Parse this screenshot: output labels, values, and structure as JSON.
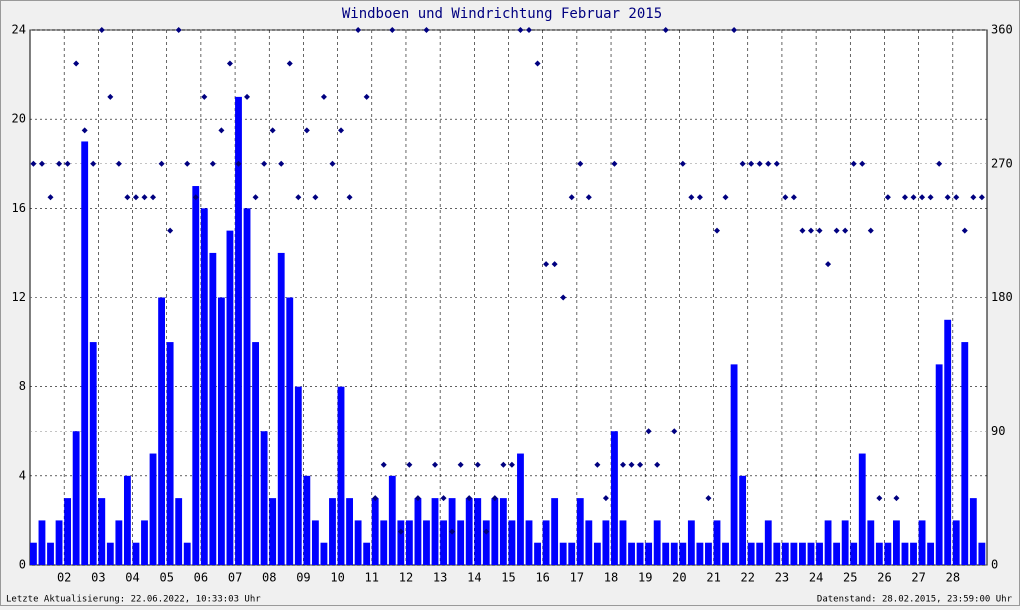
{
  "chart_data": {
    "type": "bar_scatter",
    "title": "Windboen und Windrichtung Februar 2015",
    "footer_left": "Letzte Aktualisierung: 22.06.2022, 10:33:03 Uhr",
    "footer_right": "Datenstand: 28.02.2015, 23:59:00 Uhr",
    "xlim": [
      1,
      29
    ],
    "xticks": [
      {
        "value": 2,
        "label": "02"
      },
      {
        "value": 3,
        "label": "03"
      },
      {
        "value": 4,
        "label": "04"
      },
      {
        "value": 5,
        "label": "05"
      },
      {
        "value": 6,
        "label": "06"
      },
      {
        "value": 7,
        "label": "07"
      },
      {
        "value": 8,
        "label": "08"
      },
      {
        "value": 9,
        "label": "09"
      },
      10,
      11,
      12,
      13,
      14,
      15,
      16,
      17,
      18,
      19,
      20,
      21,
      22,
      23,
      24,
      25,
      26,
      27,
      28
    ],
    "ylim": [
      0,
      24
    ],
    "yticks": [
      0,
      4,
      8,
      12,
      16,
      20,
      24
    ],
    "y2lim": [
      0,
      360
    ],
    "y2ticks": [
      0,
      90,
      180,
      270,
      360
    ],
    "grid": true,
    "x": [
      1,
      1.25,
      1.5,
      1.75,
      2,
      2.25,
      2.5,
      2.75,
      3,
      3.25,
      3.5,
      3.75,
      4,
      4.25,
      4.5,
      4.75,
      5,
      5.25,
      5.5,
      5.75,
      6,
      6.25,
      6.5,
      6.75,
      7,
      7.25,
      7.5,
      7.75,
      8,
      8.25,
      8.5,
      8.75,
      9,
      9.25,
      9.5,
      9.75,
      10,
      10.25,
      10.5,
      10.75,
      11,
      11.25,
      11.5,
      11.75,
      12,
      12.25,
      12.5,
      12.75,
      13,
      13.25,
      13.5,
      13.75,
      14,
      14.25,
      14.5,
      14.75,
      15,
      15.25,
      15.5,
      15.75,
      16,
      16.25,
      16.5,
      16.75,
      17,
      17.25,
      17.5,
      17.75,
      18,
      18.25,
      18.5,
      18.75,
      19,
      19.25,
      19.5,
      19.75,
      20,
      20.25,
      20.5,
      20.75,
      21,
      21.25,
      21.5,
      21.75,
      22,
      22.25,
      22.5,
      22.75,
      23,
      23.25,
      23.5,
      23.75,
      24,
      24.25,
      24.5,
      24.75,
      25,
      25.25,
      25.5,
      25.75,
      26,
      26.25,
      26.5,
      26.75,
      27,
      27.25,
      27.5,
      27.75,
      28,
      28.25,
      28.5,
      28.75
    ],
    "series": [
      {
        "color": "#0000ff",
        "values": [
          1,
          2,
          1,
          2,
          3,
          6,
          19,
          10,
          3,
          1,
          2,
          4,
          1,
          2,
          5,
          12,
          10,
          3,
          1,
          17,
          16,
          14,
          12,
          15,
          21,
          16,
          10,
          6,
          3,
          14,
          12,
          8,
          4,
          2,
          1,
          3,
          8,
          3,
          2,
          1,
          3,
          2,
          4,
          2,
          2,
          3,
          2,
          3,
          2,
          3,
          2,
          3,
          3,
          2,
          3,
          3,
          2,
          5,
          2,
          1,
          2,
          3,
          1,
          1,
          3,
          2,
          1,
          2,
          6,
          2,
          1,
          1,
          1,
          2,
          1,
          1,
          1,
          2,
          1,
          1,
          2,
          1,
          9,
          4,
          1,
          1,
          2,
          1,
          1,
          1,
          1,
          1,
          1,
          2,
          1,
          2,
          1,
          5,
          2,
          1,
          1,
          2,
          1,
          1,
          2,
          1,
          9,
          11,
          2,
          10,
          3,
          1
        ]
      },
      {
        "color": "#000080",
        "axis": "y2",
        "values": [
          270,
          270,
          247.5,
          270,
          270,
          337.5,
          292.5,
          270,
          360,
          315,
          270,
          247.5,
          247.5,
          247.5,
          247.5,
          270,
          225,
          360,
          270,
          247.5,
          315,
          270,
          292.5,
          337.5,
          270,
          315,
          247.5,
          270,
          292.5,
          270,
          337.5,
          247.5,
          292.5,
          247.5,
          315,
          270,
          292.5,
          247.5,
          360,
          315,
          45,
          67.5,
          360,
          22.5,
          67.5,
          45,
          360,
          67.5,
          45,
          22.5,
          67.5,
          45,
          67.5,
          22.5,
          45,
          67.5,
          67.5,
          360,
          360,
          337.5,
          202.5,
          202.5,
          180,
          247.5,
          270,
          247.5,
          67.5,
          45,
          270,
          67.5,
          67.5,
          67.5,
          90,
          67.5,
          360,
          90,
          270,
          247.5,
          247.5,
          45,
          225,
          247.5,
          360,
          270,
          270,
          270,
          270,
          270,
          247.5,
          247.5,
          225,
          225,
          225,
          202.5,
          225,
          225,
          270,
          270,
          225,
          45,
          247.5,
          45,
          247.5,
          247.5,
          247.5,
          247.5,
          270,
          247.5,
          247.5,
          225,
          247.5,
          247.5
        ]
      }
    ]
  }
}
